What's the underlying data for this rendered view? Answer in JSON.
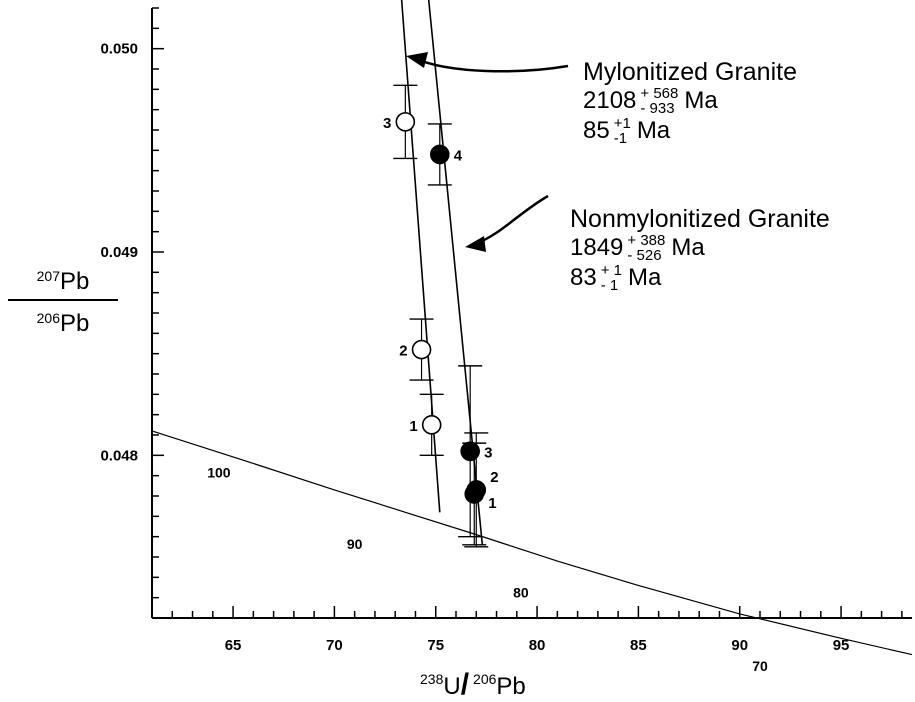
{
  "chart_data": {
    "type": "scatter",
    "xlabel_sup1": "238",
    "xlabel_u": "U",
    "xlabel_slash": "/",
    "xlabel_sup2": "206",
    "xlabel_pb": "Pb",
    "ylabel_num_sup": "207",
    "ylabel_num": "Pb",
    "ylabel_den_sup": "206",
    "ylabel_den": "Pb",
    "xlim": [
      61,
      98.5
    ],
    "ylim": [
      0.0472,
      0.0502
    ],
    "x_ticks": [
      65,
      70,
      75,
      80,
      85,
      90,
      95
    ],
    "y_ticks": [
      0.048,
      0.049,
      0.05
    ],
    "x_tick_labels": [
      "65",
      "70",
      "75",
      "80",
      "85",
      "90",
      "95"
    ],
    "y_tick_labels": [
      "0.048",
      "0.049",
      "0.050"
    ],
    "concordia": {
      "points": [
        [
          61.0,
          0.04812
        ],
        [
          66.0,
          0.04796
        ],
        [
          70.0,
          0.04783
        ],
        [
          73.5,
          0.04772
        ],
        [
          77.0,
          0.04761
        ],
        [
          81.0,
          0.04748
        ],
        [
          85.0,
          0.04736
        ],
        [
          90.0,
          0.04722
        ],
        [
          95.0,
          0.0471
        ],
        [
          98.5,
          0.04702
        ]
      ],
      "age_labels": [
        {
          "text": "100",
          "x": 64.3,
          "y": 0.04789
        },
        {
          "text": "90",
          "x": 71.0,
          "y": 0.04754
        },
        {
          "text": "80",
          "x": 79.2,
          "y": 0.0473
        },
        {
          "text": "70",
          "x": 91.0,
          "y": 0.04694
        }
      ]
    },
    "series": [
      {
        "name": "Mylonitized Granite",
        "filled": false,
        "discordia": [
          [
            72.9,
            0.0508
          ],
          [
            75.2,
            0.04772
          ]
        ],
        "points": [
          {
            "label": "3",
            "x": 73.5,
            "y": 0.04964,
            "ex": 0.25,
            "ey": 0.00018
          },
          {
            "label": "2",
            "x": 74.3,
            "y": 0.04852,
            "ex": 0.25,
            "ey": 0.00015
          },
          {
            "label": "1",
            "x": 74.8,
            "y": 0.04815,
            "ex": 0.25,
            "ey": 0.00015
          }
        ]
      },
      {
        "name": "Nonmylonitized Granite",
        "filled": true,
        "discordia": [
          [
            74.1,
            0.0508
          ],
          [
            77.3,
            0.04756
          ]
        ],
        "points": [
          {
            "label": "4",
            "x": 75.2,
            "y": 0.04948,
            "ex": 0.25,
            "ey": 0.00015
          },
          {
            "label": "3",
            "x": 76.7,
            "y": 0.04802,
            "ex": 0.3,
            "ey": 0.00042
          },
          {
            "label": "2",
            "x": 77.0,
            "y": 0.04783,
            "ex": 0.3,
            "ey": 0.00028
          },
          {
            "label": "1",
            "x": 76.9,
            "y": 0.04781,
            "ex": 0.3,
            "ey": 0.00025
          }
        ]
      }
    ]
  },
  "annotations": {
    "mylonitized": {
      "title": "Mylonitized Granite",
      "age1_value": "2108",
      "age1_plus": "+ 568",
      "age1_minus": "- 933",
      "age1_unit": "Ma",
      "age2_value": "85",
      "age2_plus": "+1",
      "age2_minus": "-1",
      "age2_unit": "Ma"
    },
    "nonmylonitized": {
      "title": "Nonmylonitized Granite",
      "age1_value": "1849",
      "age1_plus": "+ 388",
      "age1_minus": "- 526",
      "age1_unit": "Ma",
      "age2_value": "83",
      "age2_plus": "+ 1",
      "age2_minus": "- 1",
      "age2_unit": "Ma"
    }
  }
}
